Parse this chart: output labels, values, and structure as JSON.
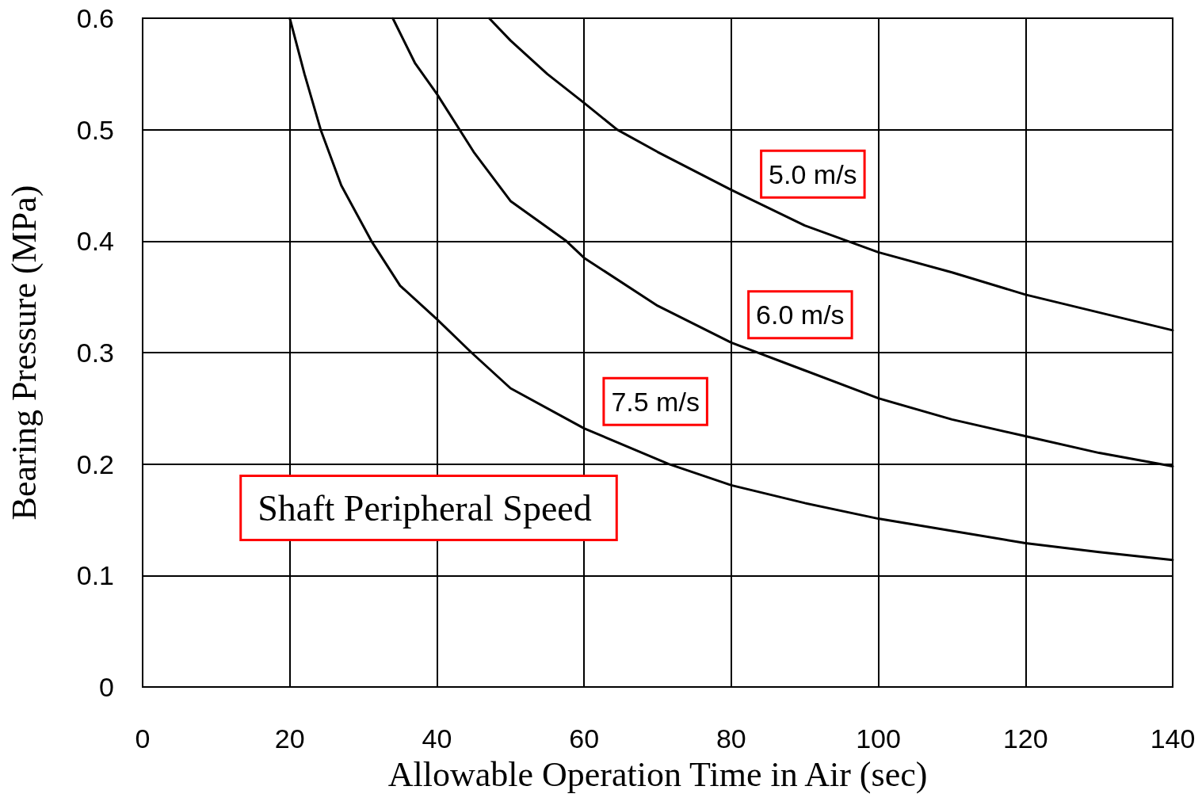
{
  "chart_data": {
    "type": "line",
    "xlabel": "Allowable Operation Time in Air (sec)",
    "ylabel": "Bearing Pressure (MPa)",
    "xlim": [
      0,
      140
    ],
    "xticks": [
      0,
      20,
      40,
      60,
      80,
      100,
      120,
      140
    ],
    "ylim": [
      0,
      0.6
    ],
    "yticks": [
      0,
      0.1,
      0.2,
      0.3,
      0.4,
      0.5,
      0.6
    ],
    "grid": true,
    "legend": false,
    "marker": "none",
    "line_style": "solid",
    "annotations": [
      "Shaft Peripheral Speed"
    ],
    "series": [
      {
        "name": "5.0 m/s",
        "color": "#000000",
        "x": [
          47.1,
          50,
          55,
          60,
          64.5,
          70,
          80,
          90,
          100,
          110,
          120,
          130,
          140
        ],
        "values": [
          0.6,
          0.58,
          0.55,
          0.524,
          0.5,
          0.48,
          0.446,
          0.414,
          0.39,
          0.372,
          0.352,
          0.336,
          0.32
        ]
      },
      {
        "name": "6.0 m/s",
        "color": "#000000",
        "x": [
          34,
          37,
          40,
          45,
          50,
          57.6,
          60,
          70,
          80,
          90,
          100,
          110,
          120,
          130,
          140
        ],
        "values": [
          0.6,
          0.56,
          0.532,
          0.48,
          0.436,
          0.4,
          0.385,
          0.342,
          0.309,
          0.284,
          0.259,
          0.24,
          0.225,
          0.21,
          0.198
        ]
      },
      {
        "name": "7.5 m/s",
        "color": "#000000",
        "x": [
          20,
          22,
          24.2,
          27,
          31.1,
          35,
          40,
          44.7,
          50,
          60,
          71.5,
          80,
          90,
          100,
          110,
          120,
          130,
          140
        ],
        "values": [
          0.6,
          0.55,
          0.5,
          0.45,
          0.4,
          0.36,
          0.33,
          0.3,
          0.268,
          0.232,
          0.2,
          0.181,
          0.165,
          0.151,
          0.14,
          0.129,
          0.121,
          0.114
        ]
      }
    ]
  }
}
